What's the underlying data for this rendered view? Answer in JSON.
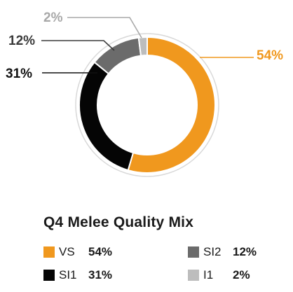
{
  "chart_data": {
    "type": "pie",
    "title": "Q4 Melee Quality Mix",
    "slices": [
      {
        "name": "VS",
        "value": 54,
        "label": "54%",
        "color": "#F0981E"
      },
      {
        "name": "SI1",
        "value": 31,
        "label": "31%",
        "color": "#050505"
      },
      {
        "name": "SI2",
        "value": 12,
        "label": "12%",
        "color": "#6B6B6B"
      },
      {
        "name": "I1",
        "value": 2,
        "label": "2%",
        "color": "#BDBDBD"
      }
    ],
    "legend": [
      {
        "name": "VS",
        "label": "54%",
        "color": "#F0981E"
      },
      {
        "name": "SI2",
        "label": "12%",
        "color": "#6B6B6B"
      },
      {
        "name": "SI1",
        "label": "31%",
        "color": "#050505"
      },
      {
        "name": "I1",
        "label": "2%",
        "color": "#BDBDBD"
      }
    ],
    "legend_position": "bottom"
  }
}
